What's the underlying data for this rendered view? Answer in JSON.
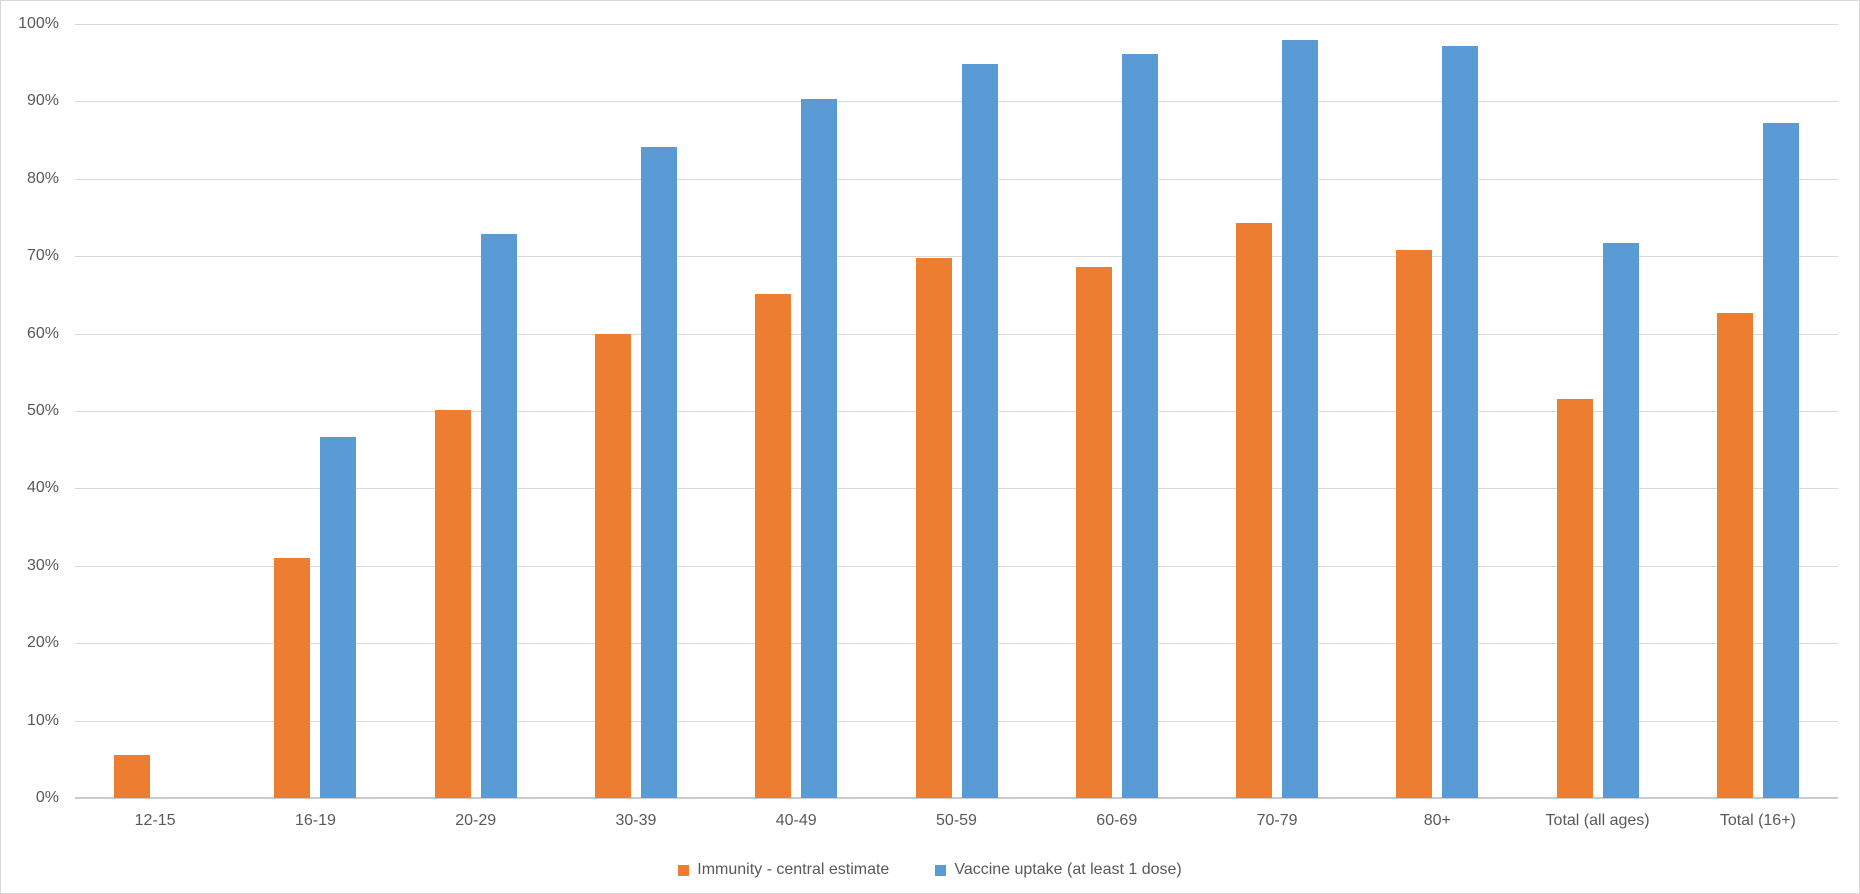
{
  "chart_data": {
    "type": "bar",
    "title": "",
    "xlabel": "",
    "ylabel": "",
    "categories": [
      "12-15",
      "16-19",
      "20-29",
      "30-39",
      "40-49",
      "50-59",
      "60-69",
      "70-79",
      "80+",
      "Total (all ages)",
      "Total (16+)"
    ],
    "series": [
      {
        "name": "Immunity - central estimate",
        "color": "#ED7D31",
        "values": [
          5.5,
          31.0,
          50.1,
          60.0,
          65.1,
          69.8,
          68.6,
          74.3,
          70.8,
          51.6,
          62.7
        ]
      },
      {
        "name": "Vaccine uptake (at least 1 dose)",
        "color": "#5B9BD5",
        "values": [
          0,
          46.7,
          72.9,
          84.1,
          90.3,
          94.8,
          96.1,
          97.9,
          97.2,
          71.7,
          87.2
        ]
      }
    ],
    "ylim": [
      0,
      100
    ],
    "y_ticks": [
      "0%",
      "10%",
      "20%",
      "30%",
      "40%",
      "50%",
      "60%",
      "70%",
      "80%",
      "90%",
      "100%"
    ],
    "grid": "horizontal-only",
    "legend_position": "bottom-center",
    "gridline_color": "#D9D9D9",
    "axis_text_color": "#595959"
  }
}
